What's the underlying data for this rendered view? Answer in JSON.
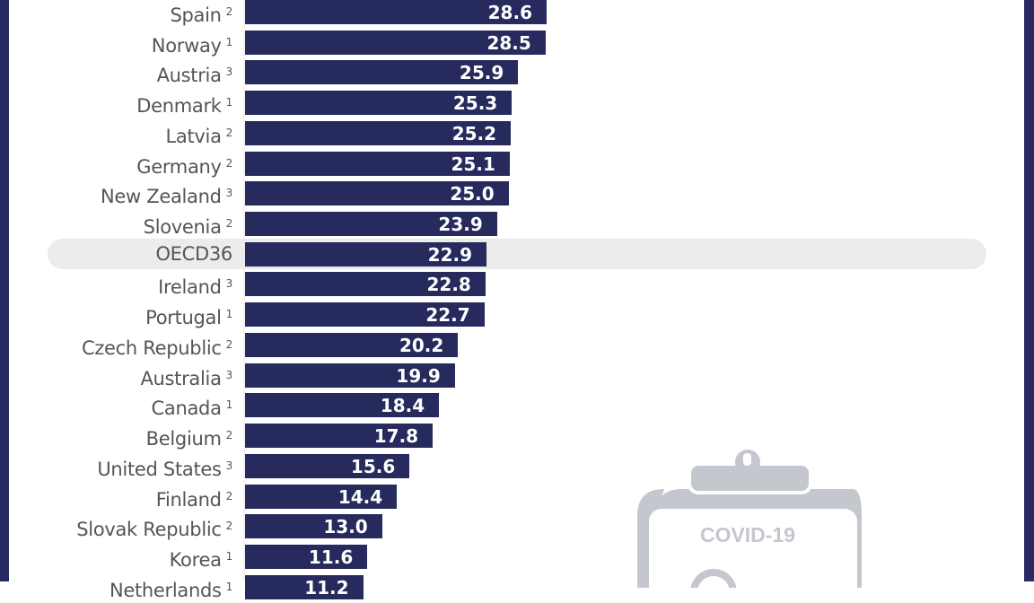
{
  "chart_data": {
    "type": "bar",
    "orientation": "horizontal",
    "categories": [
      "Spain",
      "Norway",
      "Austria",
      "Denmark",
      "Latvia",
      "Germany",
      "New Zealand",
      "Slovenia",
      "OECD36",
      "Ireland",
      "Portugal",
      "Czech Republic",
      "Australia",
      "Canada",
      "Belgium",
      "United States",
      "Finland",
      "Slovak Republic",
      "Korea",
      "Netherlands"
    ],
    "superscripts": [
      "2",
      "1",
      "3",
      "1",
      "2",
      "2",
      "3",
      "2",
      "",
      "3",
      "1",
      "2",
      "3",
      "1",
      "2",
      "3",
      "2",
      "2",
      "1",
      "1"
    ],
    "values": [
      28.6,
      28.5,
      25.9,
      25.3,
      25.2,
      25.1,
      25.0,
      23.9,
      22.9,
      22.8,
      22.7,
      20.2,
      19.9,
      18.4,
      17.8,
      15.6,
      14.4,
      13.0,
      11.6,
      11.2
    ],
    "value_labels": [
      "28.6",
      "28.5",
      "25.9",
      "25.3",
      "25.2",
      "25.1",
      "25.0",
      "23.9",
      "22.9",
      "22.8",
      "22.7",
      "20.2",
      "19.9",
      "18.4",
      "17.8",
      "15.6",
      "14.4",
      "13.0",
      "11.6",
      "11.2"
    ],
    "highlighted_category": "OECD36",
    "bar_color": "#262a5c",
    "highlight_color": "#ececec"
  },
  "watermark": {
    "icon": "clipboard-icon",
    "text": "COVID-19"
  },
  "colors": {
    "frame": "#272a5e"
  }
}
